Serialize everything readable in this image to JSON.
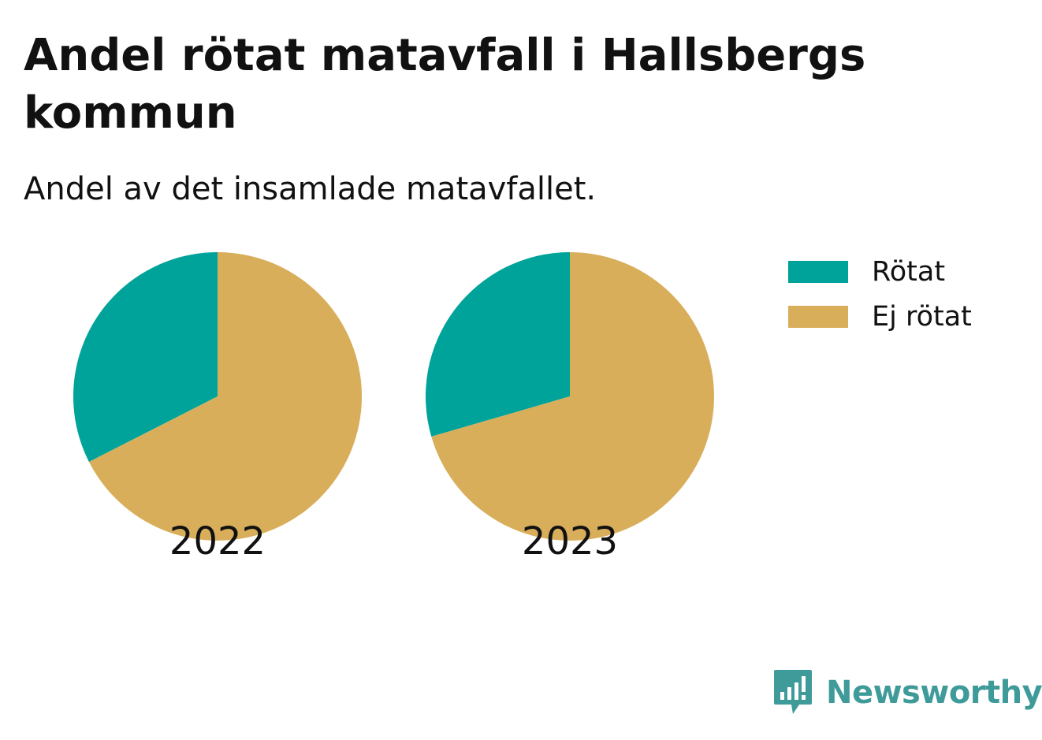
{
  "title": "Andel rötat matavfall i Hallsbergs kommun",
  "subtitle": "Andel av det insamlade matavfallet.",
  "brand": "Newsworthy",
  "colors": {
    "rotat": "#00a39a",
    "ej_rotat": "#d9ae5b",
    "brand": "#3f9a9a"
  },
  "legend": [
    {
      "label": "Rötat",
      "color": "#00a39a"
    },
    {
      "label": "Ej rötat",
      "color": "#d9ae5b"
    }
  ],
  "chart_data": [
    {
      "type": "pie",
      "label": "2022",
      "categories": [
        "Rötat",
        "Ej rötat"
      ],
      "values": [
        32.5,
        67.5
      ],
      "colors": [
        "#00a39a",
        "#d9ae5b"
      ]
    },
    {
      "type": "pie",
      "label": "2023",
      "categories": [
        "Rötat",
        "Ej rötat"
      ],
      "values": [
        29.5,
        70.5
      ],
      "colors": [
        "#00a39a",
        "#d9ae5b"
      ]
    }
  ]
}
